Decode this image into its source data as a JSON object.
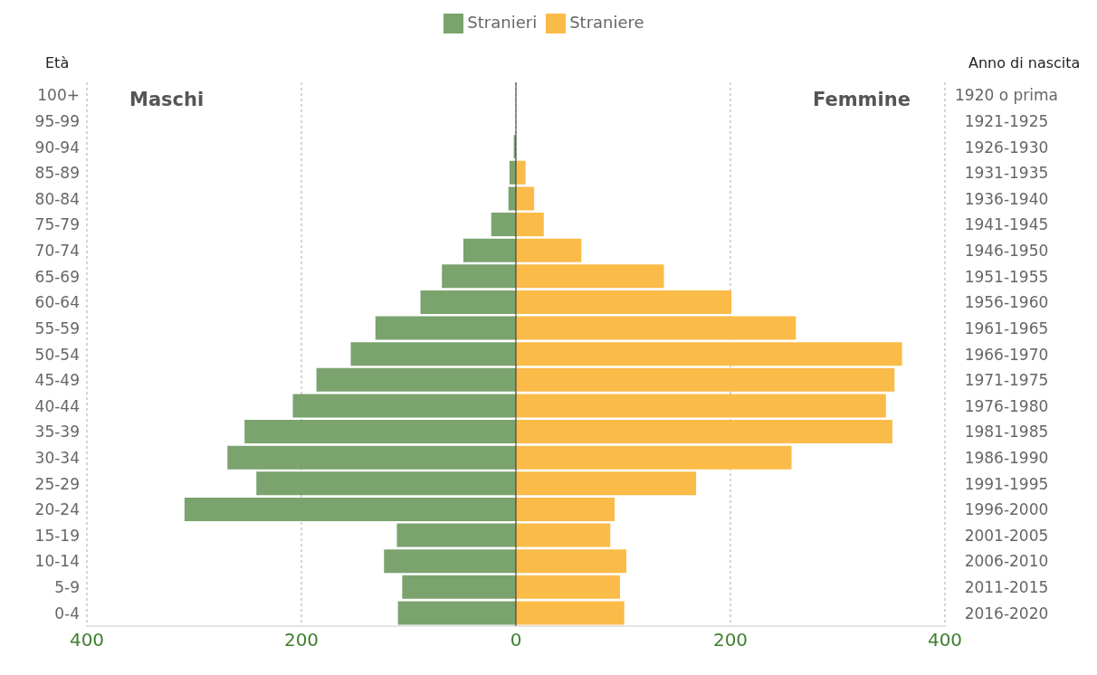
{
  "chart_data": {
    "type": "bar",
    "orientation": "horizontal",
    "stacked": true,
    "categories": [
      "100+",
      "95-99",
      "90-94",
      "85-89",
      "80-84",
      "75-79",
      "70-74",
      "65-69",
      "60-64",
      "55-59",
      "50-54",
      "45-49",
      "40-44",
      "35-39",
      "30-34",
      "25-29",
      "20-24",
      "15-19",
      "10-14",
      "5-9",
      "0-4"
    ],
    "y2_categories": [
      "1920 o prima",
      "1921-1925",
      "1926-1930",
      "1931-1935",
      "1936-1940",
      "1941-1945",
      "1946-1950",
      "1951-1955",
      "1956-1960",
      "1961-1965",
      "1966-1970",
      "1971-1975",
      "1976-1980",
      "1981-1985",
      "1986-1990",
      "1991-1995",
      "1996-2000",
      "2001-2005",
      "2006-2010",
      "2011-2015",
      "2016-2020"
    ],
    "series": [
      {
        "name": "Stranieri",
        "color": "#7aa36e",
        "values": [
          0,
          0,
          -2,
          -6,
          -7,
          -23,
          -49,
          -69,
          -89,
          -131,
          -154,
          -186,
          -208,
          -253,
          -269,
          -242,
          -309,
          -111,
          -123,
          -106,
          -110
        ]
      },
      {
        "name": "Straniere",
        "color": "#fbbb48",
        "values": [
          0,
          0,
          0,
          9,
          17,
          26,
          61,
          138,
          201,
          261,
          360,
          353,
          345,
          351,
          257,
          168,
          92,
          88,
          103,
          97,
          101
        ]
      }
    ],
    "xlim": [
      -400,
      400
    ],
    "xticks": [
      {
        "value": -400,
        "label": "400"
      },
      {
        "value": -200,
        "label": "200"
      },
      0,
      200,
      400
    ],
    "ylabel": "Età",
    "y2label": "Anno di nascita",
    "annotations": [
      "Maschi",
      "Femmine"
    ],
    "ref_lines": [
      {
        "axis": "x",
        "value": 0,
        "color": "#333333"
      }
    ],
    "grid": "x",
    "legend": "top"
  }
}
